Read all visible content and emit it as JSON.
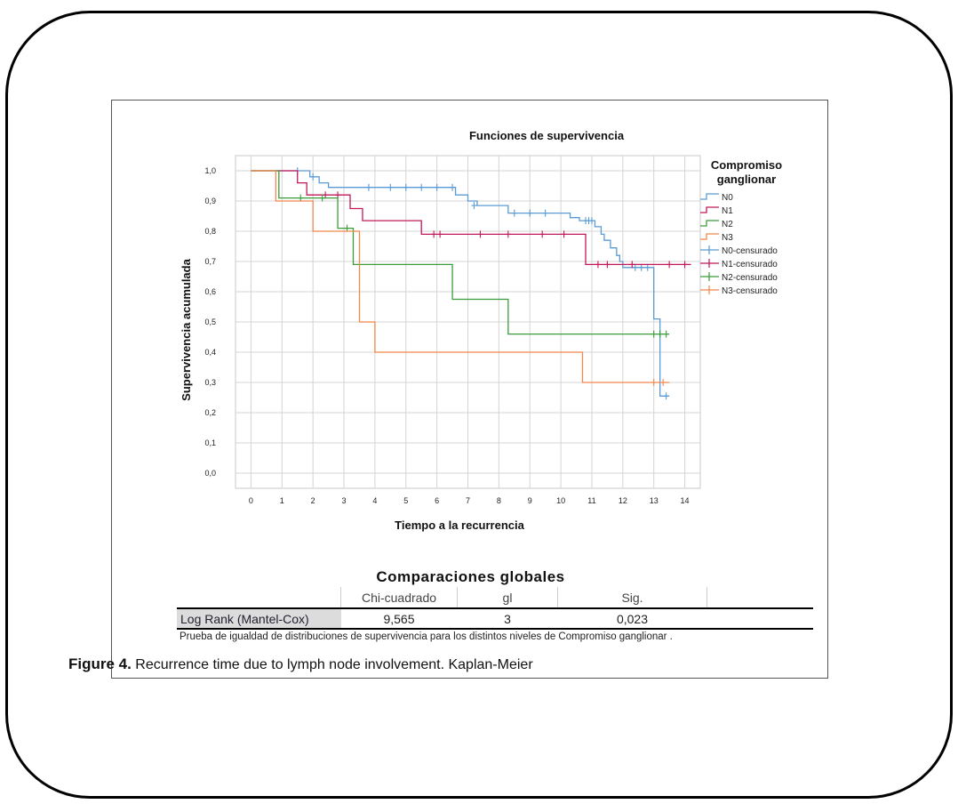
{
  "chart_data": {
    "type": "line",
    "title": "Funciones de supervivencia",
    "xlabel": "Tiempo a la recurrencia",
    "ylabel": "Supervivencia acumulada",
    "xlim": [
      -0.5,
      14.5
    ],
    "ylim": [
      -0.05,
      1.05
    ],
    "xticks": [
      "0",
      "1",
      "2",
      "3",
      "4",
      "5",
      "6",
      "7",
      "8",
      "9",
      "10",
      "11",
      "12",
      "13",
      "14"
    ],
    "yticks": [
      "0,0",
      "0,1",
      "0,2",
      "0,3",
      "0,4",
      "0,5",
      "0,6",
      "0,7",
      "0,8",
      "0,9",
      "1,0"
    ],
    "grid": true,
    "legend_title": [
      "Compromiso",
      "ganglionar"
    ],
    "legend_position": "right",
    "series": [
      {
        "name": "N0",
        "color": "#5b9bd5",
        "steps": [
          [
            0,
            1.0
          ],
          [
            1.9,
            0.98
          ],
          [
            2.2,
            0.96
          ],
          [
            2.5,
            0.945
          ],
          [
            6.6,
            0.92
          ],
          [
            7.0,
            0.9
          ],
          [
            7.3,
            0.885
          ],
          [
            8.3,
            0.86
          ],
          [
            10.3,
            0.845
          ],
          [
            10.6,
            0.835
          ],
          [
            11.1,
            0.815
          ],
          [
            11.3,
            0.79
          ],
          [
            11.4,
            0.77
          ],
          [
            11.6,
            0.745
          ],
          [
            11.8,
            0.72
          ],
          [
            11.9,
            0.7
          ],
          [
            12.0,
            0.68
          ],
          [
            13.0,
            0.51
          ],
          [
            13.2,
            0.255
          ]
        ],
        "end": 13.5,
        "censored": [
          [
            1.5,
            1.0
          ],
          [
            2.0,
            0.98
          ],
          [
            3.8,
            0.945
          ],
          [
            4.5,
            0.945
          ],
          [
            5.0,
            0.945
          ],
          [
            5.5,
            0.945
          ],
          [
            6.0,
            0.945
          ],
          [
            6.5,
            0.945
          ],
          [
            7.2,
            0.885
          ],
          [
            8.5,
            0.86
          ],
          [
            9.0,
            0.86
          ],
          [
            9.5,
            0.86
          ],
          [
            10.8,
            0.835
          ],
          [
            10.9,
            0.835
          ],
          [
            11.0,
            0.835
          ],
          [
            12.4,
            0.68
          ],
          [
            12.6,
            0.68
          ],
          [
            12.8,
            0.68
          ],
          [
            13.4,
            0.255
          ]
        ]
      },
      {
        "name": "N1",
        "color": "#c2185b",
        "steps": [
          [
            0,
            1.0
          ],
          [
            1.5,
            0.96
          ],
          [
            1.8,
            0.92
          ],
          [
            3.2,
            0.875
          ],
          [
            3.6,
            0.835
          ],
          [
            4.5,
            0.835
          ],
          [
            5.5,
            0.79
          ],
          [
            10.8,
            0.69
          ]
        ],
        "end": 14.2,
        "censored": [
          [
            2.4,
            0.92
          ],
          [
            2.8,
            0.92
          ],
          [
            5.9,
            0.79
          ],
          [
            6.1,
            0.79
          ],
          [
            7.4,
            0.79
          ],
          [
            8.3,
            0.79
          ],
          [
            9.4,
            0.79
          ],
          [
            10.1,
            0.79
          ],
          [
            11.2,
            0.69
          ],
          [
            11.5,
            0.69
          ],
          [
            12.3,
            0.69
          ],
          [
            13.5,
            0.69
          ],
          [
            14.0,
            0.69
          ]
        ]
      },
      {
        "name": "N2",
        "color": "#3a9d3a",
        "steps": [
          [
            0,
            1.0
          ],
          [
            0.9,
            0.91
          ],
          [
            2.8,
            0.81
          ],
          [
            3.3,
            0.69
          ],
          [
            6.5,
            0.575
          ],
          [
            8.3,
            0.46
          ]
        ],
        "end": 13.5,
        "censored": [
          [
            1.6,
            0.91
          ],
          [
            2.3,
            0.91
          ],
          [
            3.1,
            0.81
          ],
          [
            13.0,
            0.46
          ],
          [
            13.2,
            0.46
          ],
          [
            13.4,
            0.46
          ]
        ]
      },
      {
        "name": "N3",
        "color": "#f0884a",
        "steps": [
          [
            0,
            1.0
          ],
          [
            0.8,
            0.9
          ],
          [
            2.0,
            0.8
          ],
          [
            3.5,
            0.5
          ],
          [
            4.0,
            0.4
          ],
          [
            10.7,
            0.3
          ]
        ],
        "end": 13.5,
        "censored": [
          [
            13.0,
            0.3
          ],
          [
            13.3,
            0.3
          ]
        ]
      }
    ],
    "legend_entries": [
      "N0",
      "N1",
      "N2",
      "N3",
      "N0-censurado",
      "N1-censurado",
      "N2-censurado",
      "N3-censurado"
    ]
  },
  "stats_table": {
    "title": "Comparaciones globales",
    "headers": [
      "Chi-cuadrado",
      "gl",
      "Sig."
    ],
    "row_label": "Log Rank (Mantel-Cox)",
    "chi": "9,565",
    "gl": "3",
    "sig": "0,023",
    "note": "Prueba de igualdad de distribuciones de supervivencia para los distintos niveles de Compromiso ganglionar ."
  },
  "caption": {
    "label": "Figure  4.",
    "text": " Recurrence time due to lymph node involvement. Kaplan-Meier"
  }
}
